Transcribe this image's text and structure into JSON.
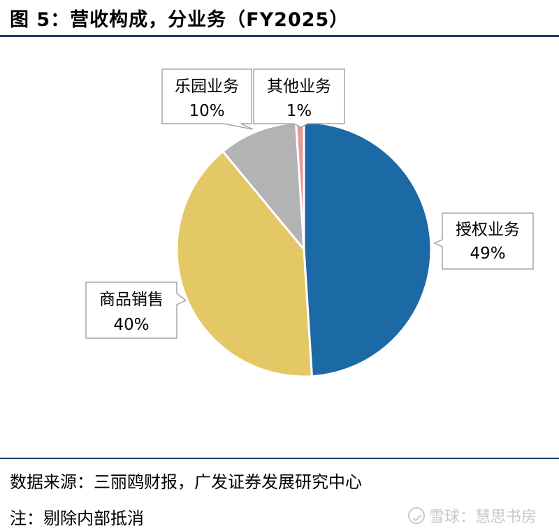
{
  "title": "图  5：营收构成，分业务（FY2025）",
  "footer": {
    "source": "数据来源：三丽鸥财报，广发证券发展研究中心",
    "note": "注：剔除内部抵消",
    "watermark": "雪球：慧思书房"
  },
  "chart_data": {
    "type": "pie",
    "title": "图  5：营收构成，分业务（FY2025）",
    "slices": [
      {
        "label": "授权业务",
        "value": 49,
        "value_label": "49%",
        "color": "#1b6aa5"
      },
      {
        "label": "商品销售",
        "value": 40,
        "value_label": "40%",
        "color": "#e3c865"
      },
      {
        "label": "乐园业务",
        "value": 10,
        "value_label": "10%",
        "color": "#b3b3b3"
      },
      {
        "label": "其他业务",
        "value": 1,
        "value_label": "1%",
        "color": "#e79a9a"
      }
    ],
    "start": "12 o'clock",
    "direction": "clockwise"
  }
}
